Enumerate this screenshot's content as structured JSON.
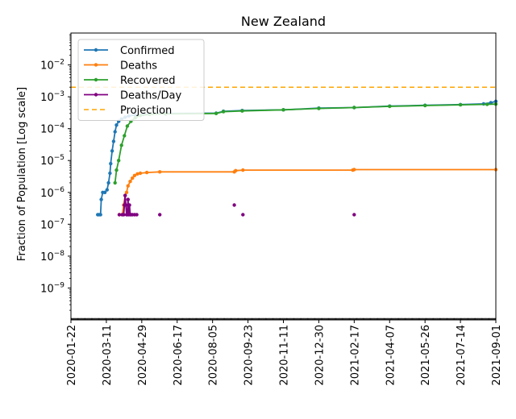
{
  "chart_data": {
    "type": "line",
    "title": "New Zealand",
    "xlabel": "",
    "ylabel": "Fraction of Population [Log scale]",
    "y_scale": "log",
    "ylim": [
      1e-10,
      0.1
    ],
    "xlim": [
      "2020-01-22",
      "2021-09-01"
    ],
    "grid": false,
    "legend_position": "top-left",
    "x_ticks": [
      "2020-01-22",
      "2020-03-11",
      "2020-04-29",
      "2020-06-17",
      "2020-08-05",
      "2020-09-23",
      "2020-11-11",
      "2020-12-30",
      "2021-02-17",
      "2021-04-07",
      "2021-05-26",
      "2021-07-14",
      "2021-09-01"
    ],
    "y_ticks": [
      {
        "value": 1e-09,
        "base": "10",
        "exp": "−9"
      },
      {
        "value": 1e-08,
        "base": "10",
        "exp": "−8"
      },
      {
        "value": 1e-07,
        "base": "10",
        "exp": "−7"
      },
      {
        "value": 1e-06,
        "base": "10",
        "exp": "−6"
      },
      {
        "value": 1e-05,
        "base": "10",
        "exp": "−5"
      },
      {
        "value": 0.0001,
        "base": "10",
        "exp": "−4"
      },
      {
        "value": 0.001,
        "base": "10",
        "exp": "−3"
      },
      {
        "value": 0.01,
        "base": "10",
        "exp": "−2"
      }
    ],
    "series": [
      {
        "name": "Confirmed",
        "color": "#1f77b4",
        "marker": true,
        "points": [
          [
            "2020-02-28",
            2e-07
          ],
          [
            "2020-03-01",
            2e-07
          ],
          [
            "2020-03-03",
            2e-07
          ],
          [
            "2020-03-04",
            6e-07
          ],
          [
            "2020-03-06",
            1e-06
          ],
          [
            "2020-03-09",
            1e-06
          ],
          [
            "2020-03-12",
            1.2e-06
          ],
          [
            "2020-03-14",
            2e-06
          ],
          [
            "2020-03-16",
            4e-06
          ],
          [
            "2020-03-17",
            8e-06
          ],
          [
            "2020-03-19",
            2e-05
          ],
          [
            "2020-03-21",
            4e-05
          ],
          [
            "2020-03-23",
            8e-05
          ],
          [
            "2020-03-25",
            0.00013
          ],
          [
            "2020-03-28",
            0.00017
          ],
          [
            "2020-04-01",
            0.0002
          ],
          [
            "2020-04-06",
            0.00023
          ],
          [
            "2020-04-11",
            0.00025
          ],
          [
            "2020-04-20",
            0.00027
          ],
          [
            "2020-05-01",
            0.00028
          ],
          [
            "2020-06-01",
            0.0003
          ],
          [
            "2020-08-10",
            0.000305
          ],
          [
            "2020-08-20",
            0.00035
          ],
          [
            "2020-09-15",
            0.00037
          ],
          [
            "2020-11-11",
            0.00039
          ],
          [
            "2020-12-30",
            0.00044
          ],
          [
            "2021-02-17",
            0.00046
          ],
          [
            "2021-04-07",
            0.00051
          ],
          [
            "2021-05-26",
            0.00054
          ],
          [
            "2021-07-14",
            0.00057
          ],
          [
            "2021-08-15",
            0.0006
          ],
          [
            "2021-08-25",
            0.00065
          ],
          [
            "2021-09-01",
            0.00072
          ]
        ]
      },
      {
        "name": "Deaths",
        "color": "#ff7f0e",
        "marker": true,
        "points": [
          [
            "2020-03-29",
            2e-07
          ],
          [
            "2020-04-02",
            2e-07
          ],
          [
            "2020-04-04",
            4e-07
          ],
          [
            "2020-04-06",
            8e-07
          ],
          [
            "2020-04-08",
            1e-06
          ],
          [
            "2020-04-10",
            1.6e-06
          ],
          [
            "2020-04-13",
            2.2e-06
          ],
          [
            "2020-04-16",
            2.8e-06
          ],
          [
            "2020-04-19",
            3.4e-06
          ],
          [
            "2020-04-23",
            3.8e-06
          ],
          [
            "2020-04-27",
            4e-06
          ],
          [
            "2020-05-06",
            4.2e-06
          ],
          [
            "2020-05-24",
            4.4e-06
          ],
          [
            "2020-09-04",
            4.4e-06
          ],
          [
            "2020-09-06",
            4.8e-06
          ],
          [
            "2020-09-16",
            5e-06
          ],
          [
            "2021-02-15",
            5e-06
          ],
          [
            "2021-02-17",
            5.2e-06
          ],
          [
            "2021-09-01",
            5.2e-06
          ]
        ]
      },
      {
        "name": "Recovered",
        "color": "#2ca02c",
        "marker": true,
        "points": [
          [
            "2020-03-23",
            2e-06
          ],
          [
            "2020-03-25",
            5e-06
          ],
          [
            "2020-03-28",
            1e-05
          ],
          [
            "2020-04-01",
            3e-05
          ],
          [
            "2020-04-05",
            6e-05
          ],
          [
            "2020-04-09",
            0.00012
          ],
          [
            "2020-04-14",
            0.00017
          ],
          [
            "2020-04-20",
            0.00022
          ],
          [
            "2020-04-27",
            0.00026
          ],
          [
            "2020-05-10",
            0.00028
          ],
          [
            "2020-06-01",
            0.00029
          ],
          [
            "2020-08-10",
            0.0003
          ],
          [
            "2020-08-20",
            0.00034
          ],
          [
            "2020-09-15",
            0.00036
          ],
          [
            "2020-11-11",
            0.00039
          ],
          [
            "2020-12-30",
            0.00043
          ],
          [
            "2021-02-17",
            0.00046
          ],
          [
            "2021-04-07",
            0.0005
          ],
          [
            "2021-05-26",
            0.00053
          ],
          [
            "2021-07-14",
            0.00056
          ],
          [
            "2021-08-20",
            0.00058
          ],
          [
            "2021-09-01",
            0.00059
          ]
        ]
      },
      {
        "name": "Deaths/Day",
        "color": "#800080",
        "marker": true,
        "points": [
          [
            "2020-03-29",
            2e-07
          ],
          [
            "2020-04-02",
            2e-07
          ],
          [
            "2020-04-04",
            2e-07
          ],
          [
            "2020-04-05",
            4e-07
          ],
          [
            "2020-04-06",
            8e-07
          ],
          [
            "2020-04-07",
            4e-07
          ],
          [
            "2020-04-08",
            2e-07
          ],
          [
            "2020-04-09",
            2e-07
          ],
          [
            "2020-04-10",
            6e-07
          ],
          [
            "2020-04-11",
            2e-07
          ],
          [
            "2020-04-12",
            4e-07
          ],
          [
            "2020-04-13",
            2e-07
          ],
          [
            "2020-04-14",
            2e-07
          ],
          [
            "2020-04-16",
            2e-07
          ],
          [
            "2020-04-19",
            2e-07
          ],
          [
            "2020-04-22",
            2e-07
          ]
        ],
        "scatter_points": [
          [
            "2020-05-24",
            2e-07
          ],
          [
            "2020-09-04",
            4e-07
          ],
          [
            "2020-09-16",
            2e-07
          ],
          [
            "2021-02-17",
            2e-07
          ]
        ]
      },
      {
        "name": "Projection",
        "color": "#ffa500",
        "dashed": true,
        "marker": false,
        "points": [
          [
            "2020-01-22",
            0.002
          ],
          [
            "2021-09-01",
            0.002
          ]
        ]
      }
    ]
  }
}
